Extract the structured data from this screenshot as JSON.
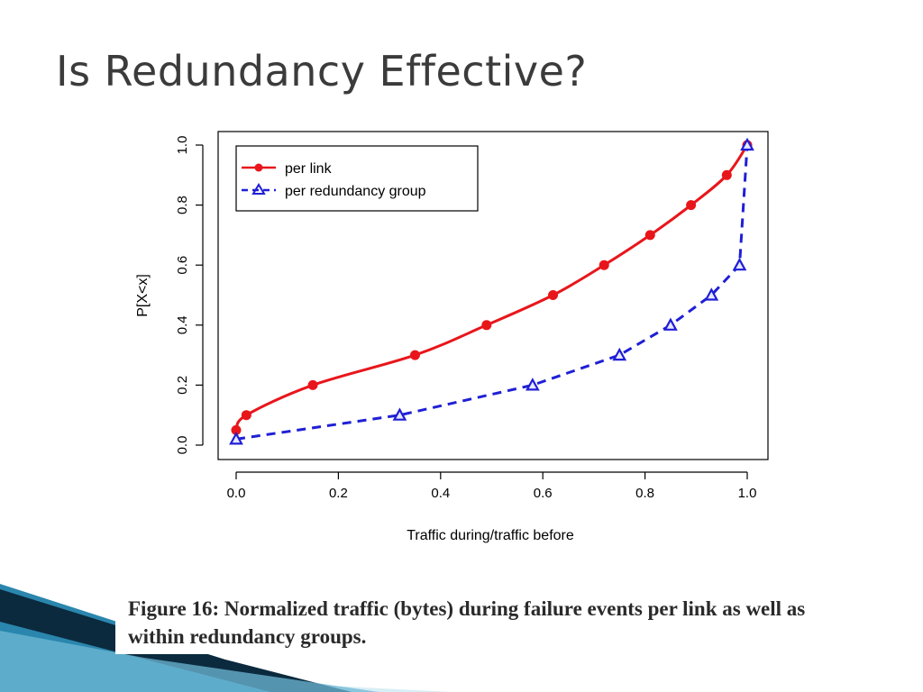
{
  "slide": {
    "title": "Is Redundancy Effective?",
    "caption": "Figure 16: Normalized traffic (bytes) during failure events per link as well as within redundancy groups."
  },
  "colors": {
    "title_text": "#3b3b3b",
    "series_link": "#e8161b",
    "series_group": "#1f1fd6",
    "deco_dark": "#0b2a3e",
    "deco_mid": "#1e6f96",
    "deco_light": "#bfe2ef"
  },
  "chart_data": {
    "type": "line",
    "xlabel": "Traffic during/traffic before",
    "ylabel": "P[X<x]",
    "xlim": [
      0,
      1
    ],
    "ylim": [
      0,
      1
    ],
    "xticks": [
      "0.0",
      "0.2",
      "0.4",
      "0.6",
      "0.8",
      "1.0"
    ],
    "yticks": [
      "0.0",
      "0.2",
      "0.4",
      "0.6",
      "0.8",
      "1.0"
    ],
    "grid": false,
    "legend_position": "top-left",
    "series": [
      {
        "name": "per link",
        "color": "#e8161b",
        "line_style": "solid",
        "marker": "circle",
        "values": [
          [
            0.0,
            0.05
          ],
          [
            0.02,
            0.1
          ],
          [
            0.15,
            0.2
          ],
          [
            0.35,
            0.3
          ],
          [
            0.49,
            0.4
          ],
          [
            0.62,
            0.5
          ],
          [
            0.72,
            0.6
          ],
          [
            0.81,
            0.7
          ],
          [
            0.89,
            0.8
          ],
          [
            0.96,
            0.9
          ],
          [
            1.0,
            1.0
          ]
        ]
      },
      {
        "name": "per redundancy group",
        "color": "#1f1fd6",
        "line_style": "dashed",
        "marker": "triangle",
        "values": [
          [
            0.0,
            0.02
          ],
          [
            0.32,
            0.1
          ],
          [
            0.58,
            0.2
          ],
          [
            0.75,
            0.3
          ],
          [
            0.85,
            0.4
          ],
          [
            0.93,
            0.5
          ],
          [
            0.985,
            0.6
          ],
          [
            1.0,
            1.0
          ]
        ]
      }
    ]
  }
}
